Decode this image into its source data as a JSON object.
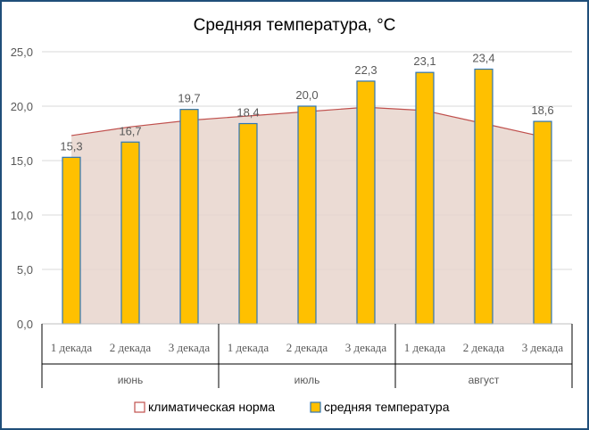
{
  "chart_data": {
    "type": "bar",
    "title": "Средняя температура, °C",
    "xlabel": "",
    "ylabel": "",
    "ylim": [
      0,
      25
    ],
    "yticks": [
      "0,0",
      "5,0",
      "10,0",
      "15,0",
      "20,0",
      "25,0"
    ],
    "ytick_values": [
      0,
      5,
      10,
      15,
      20,
      25
    ],
    "grid": true,
    "legend_position": "bottom",
    "categories": [
      "1 декада",
      "2 декада",
      "3 декада",
      "1 декада",
      "2 декада",
      "3 декада",
      "1 декада",
      "2 декада",
      "3 декада"
    ],
    "groups": [
      {
        "label": "июнь",
        "count": 3
      },
      {
        "label": "июль",
        "count": 3
      },
      {
        "label": "август",
        "count": 3
      }
    ],
    "series": [
      {
        "name": "климатическая норма",
        "type": "area",
        "color": "#c0504d",
        "fill": "#e8d5cc",
        "values": [
          17.3,
          18.1,
          18.7,
          19.1,
          19.5,
          19.9,
          19.6,
          18.4,
          17.2
        ]
      },
      {
        "name": "средняя температура",
        "type": "bar",
        "color": "#ffc000",
        "edge": "#2e75b6",
        "values": [
          15.3,
          16.7,
          19.7,
          18.4,
          20.0,
          22.3,
          23.1,
          23.4,
          18.6
        ],
        "labels": [
          "15,3",
          "16,7",
          "19,7",
          "18,4",
          "20,0",
          "22,3",
          "23,1",
          "23,4",
          "18,6"
        ]
      }
    ]
  }
}
